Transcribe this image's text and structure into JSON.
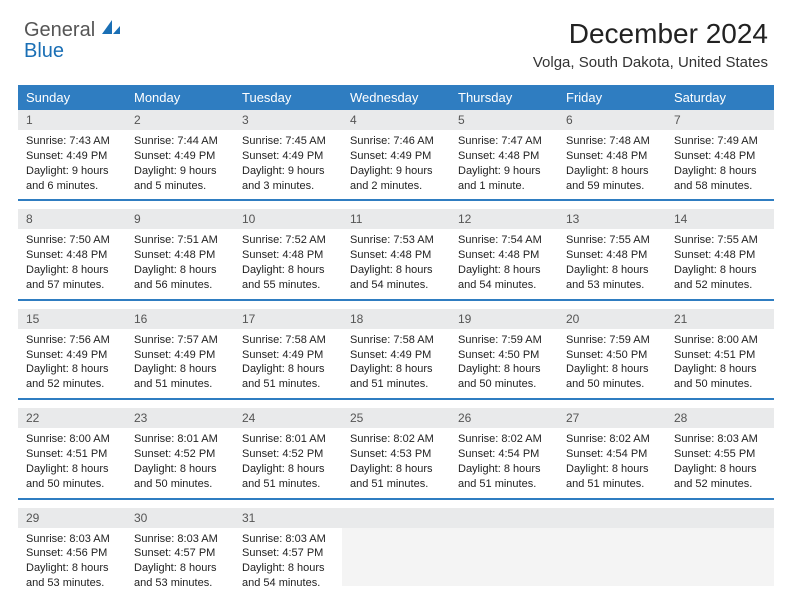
{
  "logo": {
    "general": "General",
    "blue": "Blue"
  },
  "title": "December 2024",
  "location": "Volga, South Dakota, United States",
  "colors": {
    "header_bg": "#2f7dc1",
    "header_fg": "#ffffff",
    "daynum_bg": "#e9eaeb",
    "daynum_fg": "#555555",
    "rule": "#2f7dc1",
    "logo_blue": "#1a6fb5",
    "logo_gray": "#555555",
    "text": "#222222"
  },
  "day_names": [
    "Sunday",
    "Monday",
    "Tuesday",
    "Wednesday",
    "Thursday",
    "Friday",
    "Saturday"
  ],
  "weeks": [
    [
      {
        "n": "1",
        "sr": "7:43 AM",
        "ss": "4:49 PM",
        "dl": "9 hours and 6 minutes."
      },
      {
        "n": "2",
        "sr": "7:44 AM",
        "ss": "4:49 PM",
        "dl": "9 hours and 5 minutes."
      },
      {
        "n": "3",
        "sr": "7:45 AM",
        "ss": "4:49 PM",
        "dl": "9 hours and 3 minutes."
      },
      {
        "n": "4",
        "sr": "7:46 AM",
        "ss": "4:49 PM",
        "dl": "9 hours and 2 minutes."
      },
      {
        "n": "5",
        "sr": "7:47 AM",
        "ss": "4:48 PM",
        "dl": "9 hours and 1 minute."
      },
      {
        "n": "6",
        "sr": "7:48 AM",
        "ss": "4:48 PM",
        "dl": "8 hours and 59 minutes."
      },
      {
        "n": "7",
        "sr": "7:49 AM",
        "ss": "4:48 PM",
        "dl": "8 hours and 58 minutes."
      }
    ],
    [
      {
        "n": "8",
        "sr": "7:50 AM",
        "ss": "4:48 PM",
        "dl": "8 hours and 57 minutes."
      },
      {
        "n": "9",
        "sr": "7:51 AM",
        "ss": "4:48 PM",
        "dl": "8 hours and 56 minutes."
      },
      {
        "n": "10",
        "sr": "7:52 AM",
        "ss": "4:48 PM",
        "dl": "8 hours and 55 minutes."
      },
      {
        "n": "11",
        "sr": "7:53 AM",
        "ss": "4:48 PM",
        "dl": "8 hours and 54 minutes."
      },
      {
        "n": "12",
        "sr": "7:54 AM",
        "ss": "4:48 PM",
        "dl": "8 hours and 54 minutes."
      },
      {
        "n": "13",
        "sr": "7:55 AM",
        "ss": "4:48 PM",
        "dl": "8 hours and 53 minutes."
      },
      {
        "n": "14",
        "sr": "7:55 AM",
        "ss": "4:48 PM",
        "dl": "8 hours and 52 minutes."
      }
    ],
    [
      {
        "n": "15",
        "sr": "7:56 AM",
        "ss": "4:49 PM",
        "dl": "8 hours and 52 minutes."
      },
      {
        "n": "16",
        "sr": "7:57 AM",
        "ss": "4:49 PM",
        "dl": "8 hours and 51 minutes."
      },
      {
        "n": "17",
        "sr": "7:58 AM",
        "ss": "4:49 PM",
        "dl": "8 hours and 51 minutes."
      },
      {
        "n": "18",
        "sr": "7:58 AM",
        "ss": "4:49 PM",
        "dl": "8 hours and 51 minutes."
      },
      {
        "n": "19",
        "sr": "7:59 AM",
        "ss": "4:50 PM",
        "dl": "8 hours and 50 minutes."
      },
      {
        "n": "20",
        "sr": "7:59 AM",
        "ss": "4:50 PM",
        "dl": "8 hours and 50 minutes."
      },
      {
        "n": "21",
        "sr": "8:00 AM",
        "ss": "4:51 PM",
        "dl": "8 hours and 50 minutes."
      }
    ],
    [
      {
        "n": "22",
        "sr": "8:00 AM",
        "ss": "4:51 PM",
        "dl": "8 hours and 50 minutes."
      },
      {
        "n": "23",
        "sr": "8:01 AM",
        "ss": "4:52 PM",
        "dl": "8 hours and 50 minutes."
      },
      {
        "n": "24",
        "sr": "8:01 AM",
        "ss": "4:52 PM",
        "dl": "8 hours and 51 minutes."
      },
      {
        "n": "25",
        "sr": "8:02 AM",
        "ss": "4:53 PM",
        "dl": "8 hours and 51 minutes."
      },
      {
        "n": "26",
        "sr": "8:02 AM",
        "ss": "4:54 PM",
        "dl": "8 hours and 51 minutes."
      },
      {
        "n": "27",
        "sr": "8:02 AM",
        "ss": "4:54 PM",
        "dl": "8 hours and 51 minutes."
      },
      {
        "n": "28",
        "sr": "8:03 AM",
        "ss": "4:55 PM",
        "dl": "8 hours and 52 minutes."
      }
    ],
    [
      {
        "n": "29",
        "sr": "8:03 AM",
        "ss": "4:56 PM",
        "dl": "8 hours and 53 minutes."
      },
      {
        "n": "30",
        "sr": "8:03 AM",
        "ss": "4:57 PM",
        "dl": "8 hours and 53 minutes."
      },
      {
        "n": "31",
        "sr": "8:03 AM",
        "ss": "4:57 PM",
        "dl": "8 hours and 54 minutes."
      },
      null,
      null,
      null,
      null
    ]
  ],
  "labels": {
    "sunrise": "Sunrise:",
    "sunset": "Sunset:",
    "daylight": "Daylight:"
  }
}
